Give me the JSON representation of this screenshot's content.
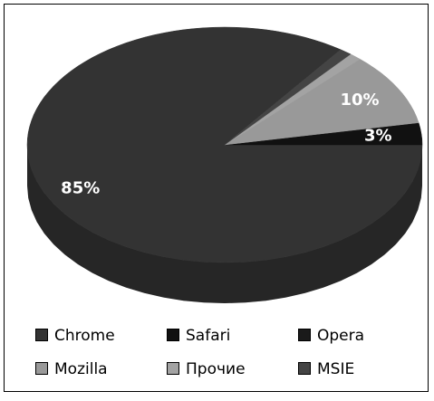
{
  "chart_data": {
    "type": "pie",
    "categories": [
      "Chrome",
      "Safari",
      "Opera",
      "Mozilla",
      "Прочие",
      "MSIE"
    ],
    "values": [
      85,
      3,
      0,
      10,
      1,
      1
    ],
    "value_labels": [
      "85%",
      "3%",
      null,
      "10%",
      null,
      null
    ],
    "colors": [
      "#333333",
      "#111111",
      "#1a1a1a",
      "#999999",
      "#a3a3a3",
      "#444444"
    ],
    "legend": "bottom",
    "three_d": true
  }
}
